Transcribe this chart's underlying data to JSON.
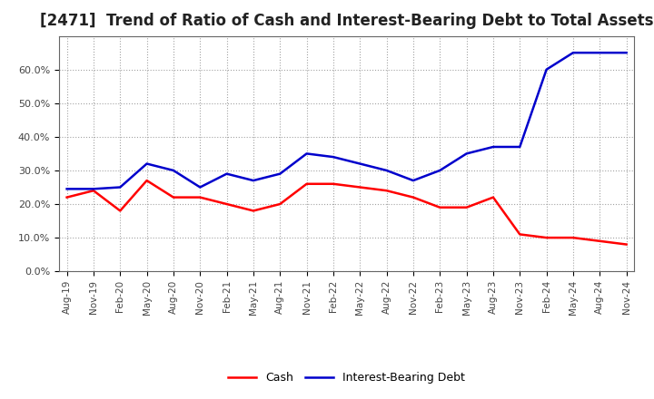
{
  "title": "[2471]  Trend of Ratio of Cash and Interest-Bearing Debt to Total Assets",
  "x_labels": [
    "Aug-19",
    "Nov-19",
    "Feb-20",
    "May-20",
    "Aug-20",
    "Nov-20",
    "Feb-21",
    "May-21",
    "Aug-21",
    "Nov-21",
    "Feb-22",
    "May-22",
    "Aug-22",
    "Nov-22",
    "Feb-23",
    "May-23",
    "Aug-23",
    "Nov-23",
    "Feb-24",
    "May-24",
    "Aug-24",
    "Nov-24"
  ],
  "cash": [
    0.22,
    0.24,
    0.18,
    0.27,
    0.22,
    0.22,
    0.2,
    0.18,
    0.2,
    0.26,
    0.26,
    0.25,
    0.24,
    0.22,
    0.19,
    0.19,
    0.22,
    0.11,
    0.1,
    0.1,
    0.09,
    0.08
  ],
  "ibd": [
    0.245,
    0.245,
    0.25,
    0.32,
    0.3,
    0.25,
    0.29,
    0.27,
    0.29,
    0.35,
    0.34,
    0.32,
    0.3,
    0.27,
    0.3,
    0.35,
    0.37,
    0.37,
    0.6,
    0.65,
    0.65,
    0.65
  ],
  "cash_color": "#ff0000",
  "ibd_color": "#0000cc",
  "ylim": [
    0.0,
    0.7
  ],
  "yticks": [
    0.0,
    0.1,
    0.2,
    0.3,
    0.4,
    0.5,
    0.6
  ],
  "background_color": "#ffffff",
  "grid_color": "#999999",
  "legend_cash": "Cash",
  "legend_ibd": "Interest-Bearing Debt",
  "title_fontsize": 12,
  "linewidth": 1.8
}
